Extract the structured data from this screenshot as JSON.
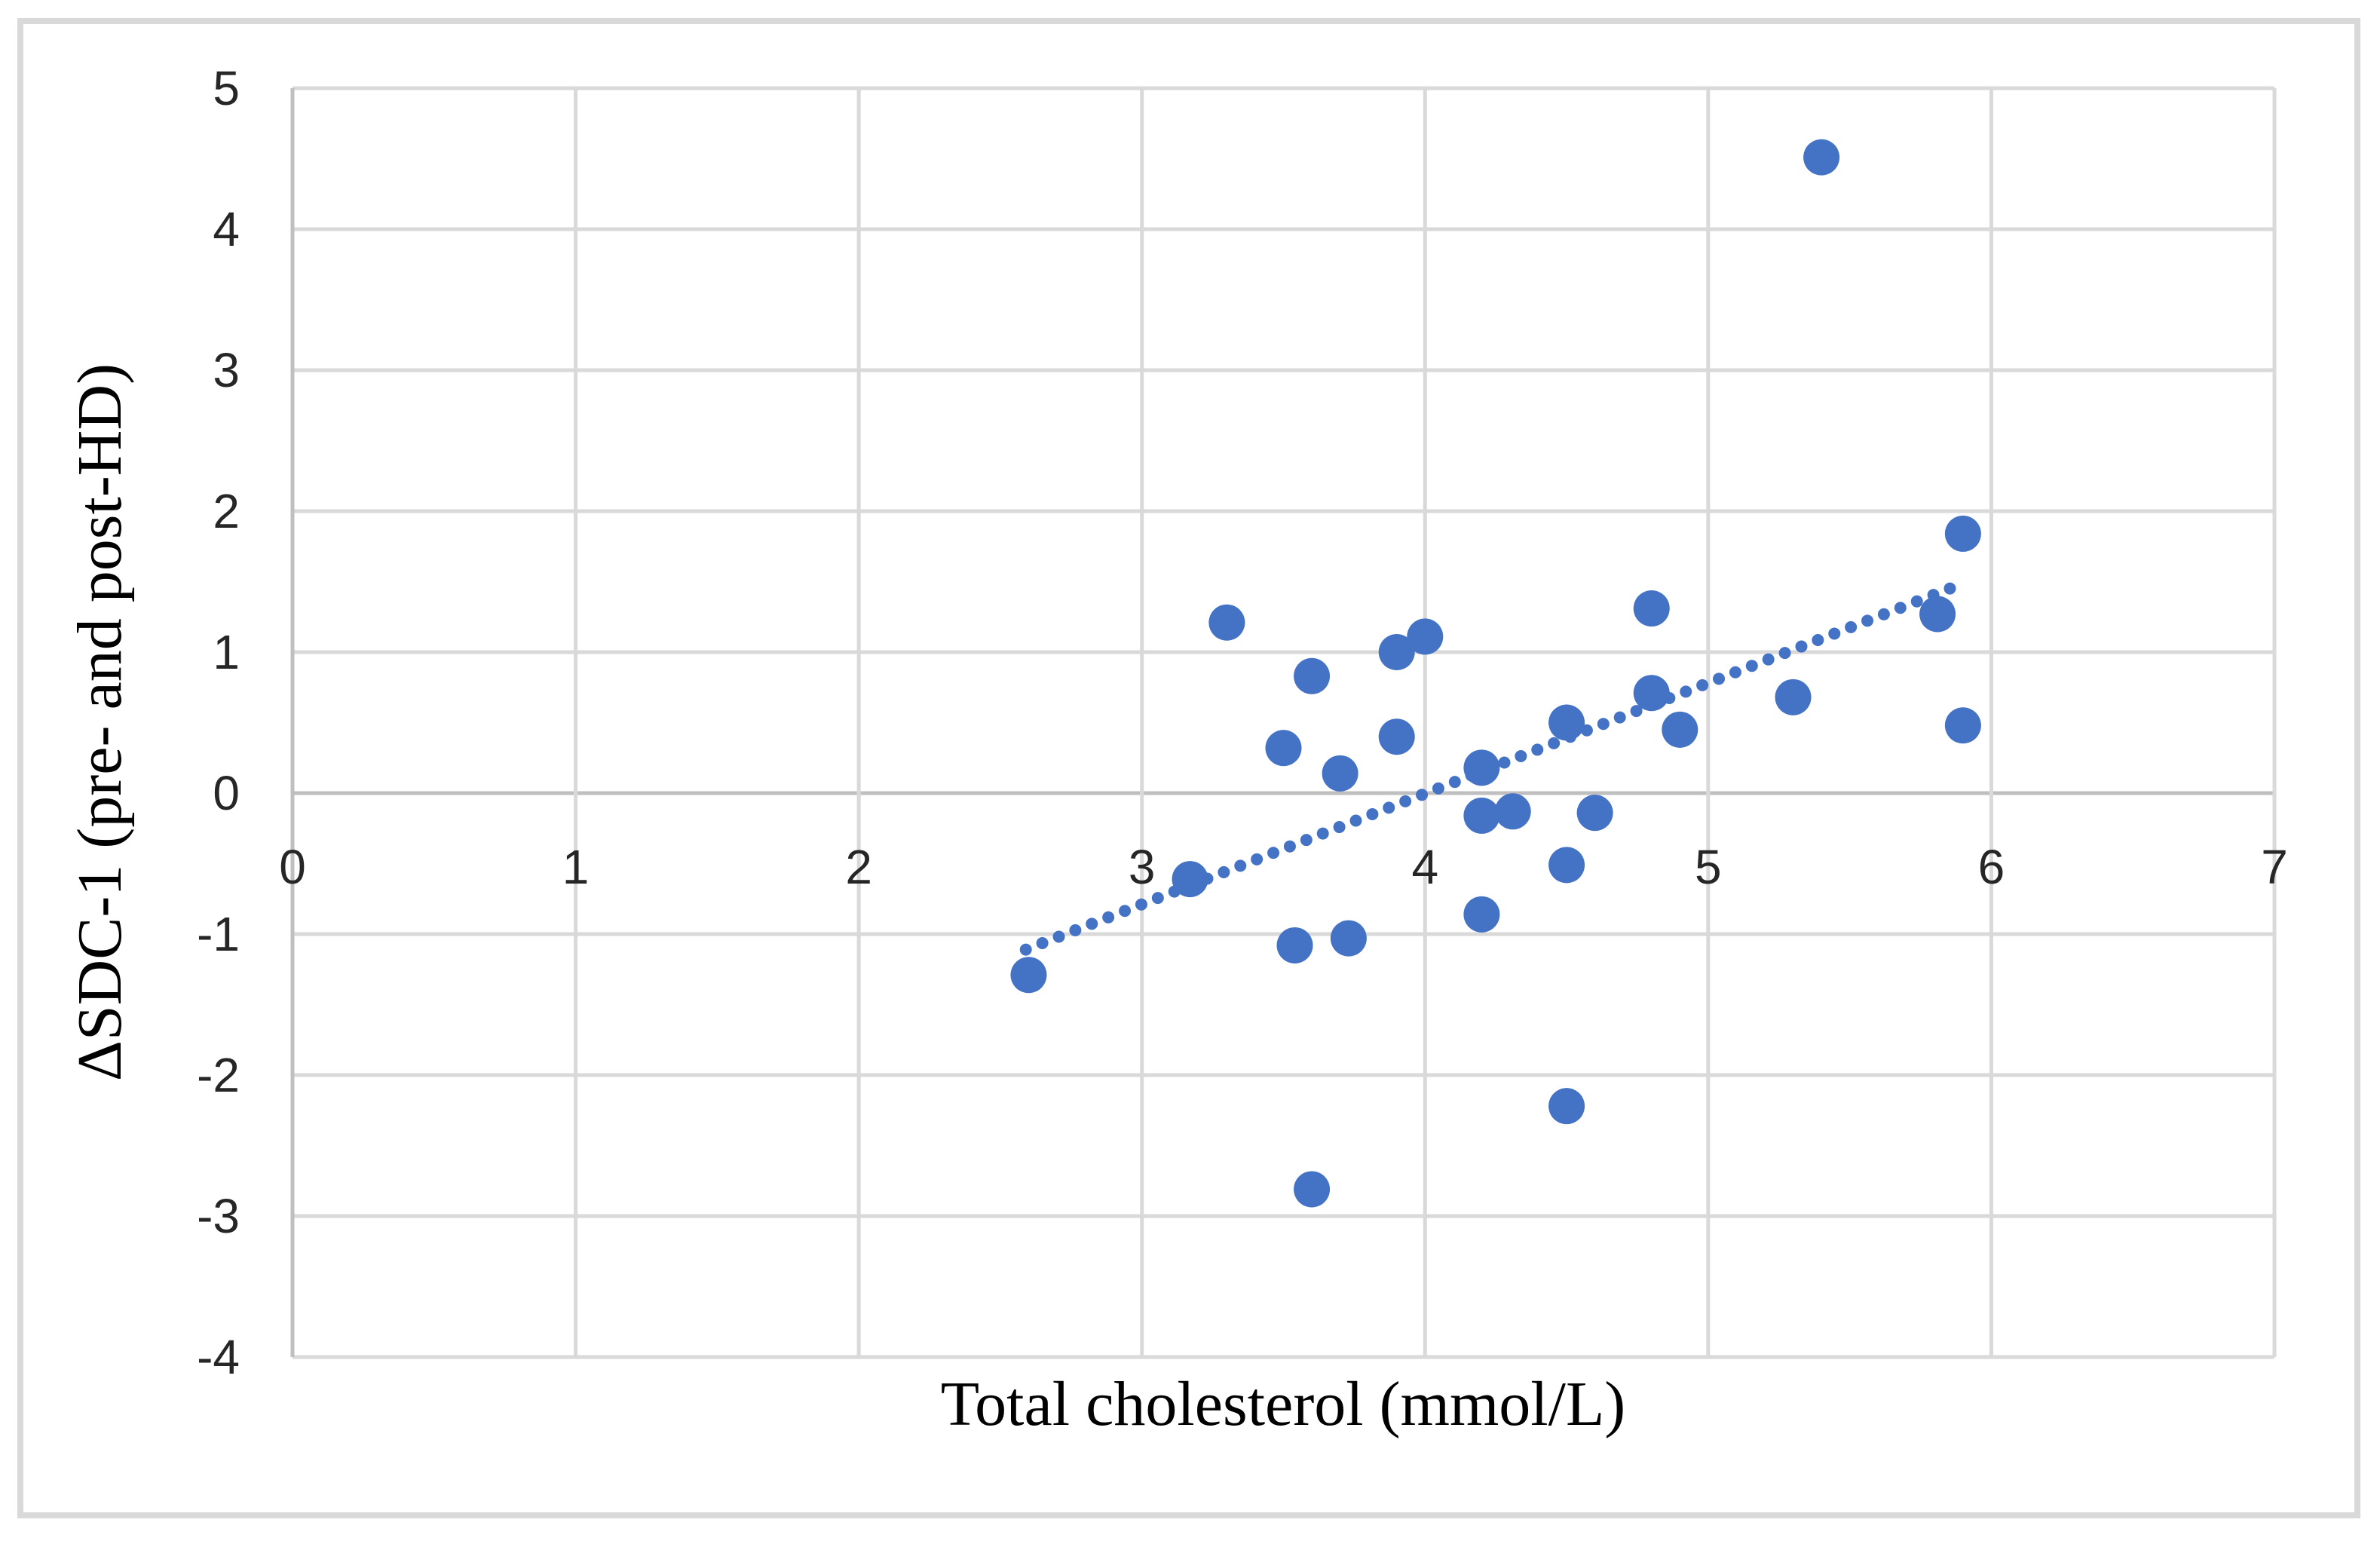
{
  "figure": {
    "background": "#ffffff",
    "border_color": "#d9d9d9"
  },
  "chart_data": {
    "type": "scatter",
    "title": "",
    "xlabel": "Total cholesterol (mmol/L)",
    "ylabel": "ΔSDC-1 (pre- and post-HD)",
    "xlim": [
      0,
      7
    ],
    "ylim": [
      -4,
      5
    ],
    "xticks": [
      0,
      1,
      2,
      3,
      4,
      5,
      6,
      7
    ],
    "yticks": [
      -4,
      -3,
      -2,
      -1,
      0,
      1,
      2,
      3,
      4,
      5
    ],
    "grid": true,
    "legend": "none",
    "marker_color": "#4472c4",
    "gridline_color": "#d9d9d9",
    "axisline_color": "#bfbfbf",
    "tick_label_color": "#262626",
    "points": [
      [
        2.6,
        -1.29
      ],
      [
        3.17,
        -0.61
      ],
      [
        3.3,
        1.21
      ],
      [
        3.5,
        0.32
      ],
      [
        3.54,
        -1.08
      ],
      [
        3.6,
        0.83
      ],
      [
        3.6,
        -2.81
      ],
      [
        3.7,
        0.14
      ],
      [
        3.73,
        -1.03
      ],
      [
        3.9,
        1.0
      ],
      [
        3.9,
        0.4
      ],
      [
        4.0,
        1.11
      ],
      [
        4.2,
        0.18
      ],
      [
        4.2,
        -0.16
      ],
      [
        4.2,
        -0.86
      ],
      [
        4.31,
        -0.13
      ],
      [
        4.5,
        0.5
      ],
      [
        4.5,
        -0.51
      ],
      [
        4.5,
        -2.22
      ],
      [
        4.6,
        -0.14
      ],
      [
        4.8,
        1.31
      ],
      [
        4.8,
        0.71
      ],
      [
        4.9,
        0.45
      ],
      [
        5.3,
        0.68
      ],
      [
        5.4,
        4.51
      ],
      [
        5.81,
        1.27
      ],
      [
        5.9,
        1.84
      ],
      [
        5.9,
        0.48
      ]
    ],
    "trendline": {
      "style": "dotted",
      "color": "#4472c4",
      "x1": 2.59,
      "y1": -1.11,
      "x2": 5.89,
      "y2": 1.48
    }
  }
}
